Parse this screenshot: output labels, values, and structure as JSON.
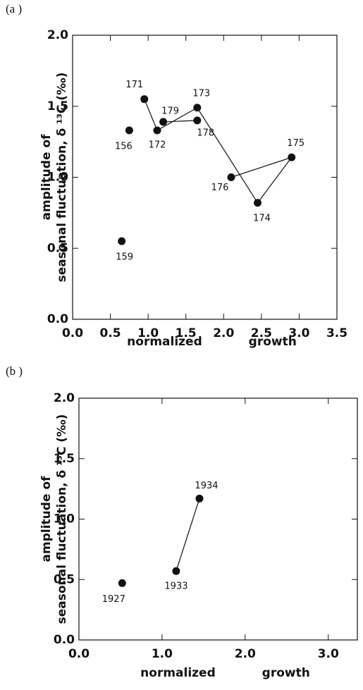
{
  "chart_data": [
    {
      "type": "scatter",
      "panel": "(a )",
      "ylabel": [
        "amplitude of",
        "seasonal fluctuation, δ ¹³C (‰)"
      ],
      "xlabel": "normalized growth",
      "xlim": [
        0,
        3.5
      ],
      "xticks": [
        {
          "value": 0,
          "label": "0.0"
        },
        0.5,
        {
          "value": 1,
          "label": "1.0"
        },
        1.5,
        {
          "value": 2,
          "label": "2.0"
        },
        2.5,
        {
          "value": 3,
          "label": "3.0"
        },
        3.5
      ],
      "ylim": [
        0,
        2
      ],
      "yticks": [
        {
          "value": 0,
          "label": "0.0"
        },
        0.5,
        {
          "value": 1,
          "label": "1.0"
        },
        1.5,
        {
          "value": 2,
          "label": "2.0"
        }
      ],
      "color": "#111111",
      "series": [
        {
          "line": true,
          "x": [
            0.95,
            1.12,
            1.65,
            2.45,
            2.9,
            2.1
          ],
          "values": [
            1.55,
            1.33,
            1.49,
            0.82,
            1.14,
            1.0
          ],
          "labels": [
            "171",
            "172",
            "173",
            "174",
            "175",
            "176"
          ]
        },
        {
          "line": true,
          "x": [
            1.2,
            1.65
          ],
          "values": [
            1.39,
            1.4
          ],
          "labels": [
            "179",
            "178"
          ]
        },
        {
          "line": false,
          "x": [
            0.75,
            0.65
          ],
          "values": [
            1.33,
            0.55
          ],
          "labels": [
            "156",
            "159"
          ]
        }
      ]
    },
    {
      "type": "scatter",
      "panel": "(b )",
      "ylabel": [
        "amplitude of",
        "seasonal fluctuation, δ ¹³C (‰)"
      ],
      "xlabel": "normalized growth",
      "xlim": [
        0,
        3.35
      ],
      "xticks": [
        {
          "value": 0,
          "label": "0.0"
        },
        {
          "value": 1,
          "label": "1.0"
        },
        {
          "value": 2,
          "label": "2.0"
        },
        {
          "value": 3,
          "label": "3.0"
        }
      ],
      "ylim": [
        0,
        2
      ],
      "yticks": [
        {
          "value": 0,
          "label": "0.0"
        },
        0.5,
        {
          "value": 1,
          "label": "1.0"
        },
        1.5,
        {
          "value": 2,
          "label": "2.0"
        }
      ],
      "color": "#111111",
      "series": [
        {
          "line": true,
          "x": [
            1.17,
            1.45
          ],
          "values": [
            0.57,
            1.17
          ],
          "labels": [
            "1933",
            "1934"
          ]
        },
        {
          "line": false,
          "x": [
            0.52
          ],
          "values": [
            0.47
          ],
          "labels": [
            "1927"
          ]
        }
      ]
    }
  ]
}
